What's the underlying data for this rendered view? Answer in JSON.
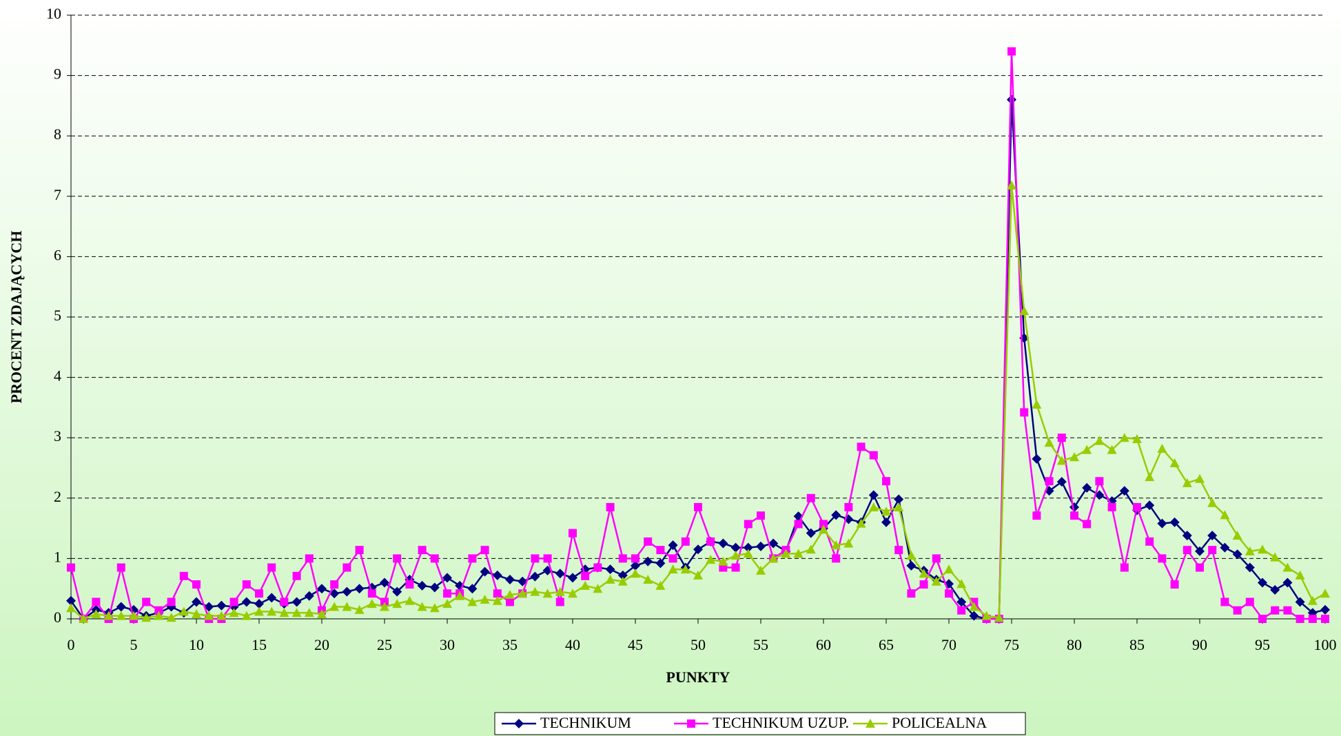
{
  "chart_data": {
    "type": "line",
    "xlabel": "PUNKTY",
    "ylabel": "PROCENT ZDAJĄCYCH",
    "x": [
      0,
      1,
      2,
      3,
      4,
      5,
      6,
      7,
      8,
      9,
      10,
      11,
      12,
      13,
      14,
      15,
      16,
      17,
      18,
      19,
      20,
      21,
      22,
      23,
      24,
      25,
      26,
      27,
      28,
      29,
      30,
      31,
      32,
      33,
      34,
      35,
      36,
      37,
      38,
      39,
      40,
      41,
      42,
      43,
      44,
      45,
      46,
      47,
      48,
      49,
      50,
      51,
      52,
      53,
      54,
      55,
      56,
      57,
      58,
      59,
      60,
      61,
      62,
      63,
      64,
      65,
      66,
      67,
      68,
      69,
      70,
      71,
      72,
      73,
      74,
      75,
      76,
      77,
      78,
      79,
      80,
      81,
      82,
      83,
      84,
      85,
      86,
      87,
      88,
      89,
      90,
      91,
      92,
      93,
      94,
      95,
      96,
      97,
      98,
      99,
      100
    ],
    "series": [
      {
        "name": "TECHNIKUM",
        "color": "#000080",
        "marker": "diamond",
        "values": [
          0.3,
          0.0,
          0.15,
          0.1,
          0.2,
          0.15,
          0.05,
          0.1,
          0.2,
          0.1,
          0.28,
          0.2,
          0.22,
          0.2,
          0.28,
          0.25,
          0.35,
          0.25,
          0.28,
          0.38,
          0.5,
          0.42,
          0.45,
          0.5,
          0.52,
          0.6,
          0.45,
          0.65,
          0.55,
          0.52,
          0.68,
          0.55,
          0.5,
          0.78,
          0.72,
          0.65,
          0.62,
          0.7,
          0.8,
          0.75,
          0.68,
          0.82,
          0.85,
          0.82,
          0.72,
          0.88,
          0.95,
          0.92,
          1.22,
          0.85,
          1.15,
          1.28,
          1.25,
          1.18,
          1.18,
          1.2,
          1.25,
          1.12,
          1.7,
          1.42,
          1.5,
          1.72,
          1.65,
          1.6,
          2.05,
          1.6,
          1.98,
          0.88,
          0.8,
          0.65,
          0.58,
          0.28,
          0.05,
          0.0,
          0.0,
          8.6,
          4.65,
          2.65,
          2.12,
          2.27,
          1.85,
          2.17,
          2.05,
          1.95,
          2.12,
          1.8,
          1.88,
          1.58,
          1.6,
          1.38,
          1.12,
          1.38,
          1.18,
          1.07,
          0.85,
          0.6,
          0.48,
          0.6,
          0.28,
          0.1,
          0.15
        ]
      },
      {
        "name": "TECHNIKUM UZUP.",
        "color": "#ff00ff",
        "marker": "square",
        "values": [
          0.85,
          0.0,
          0.28,
          0.0,
          0.85,
          0.0,
          0.28,
          0.14,
          0.28,
          0.71,
          0.57,
          0.0,
          0.0,
          0.28,
          0.57,
          0.42,
          0.85,
          0.28,
          0.71,
          1.0,
          0.14,
          0.57,
          0.85,
          1.14,
          0.42,
          0.28,
          1.0,
          0.57,
          1.14,
          1.0,
          0.42,
          0.42,
          1.0,
          1.14,
          0.42,
          0.28,
          0.42,
          1.0,
          1.0,
          0.28,
          1.42,
          0.71,
          0.85,
          1.85,
          1.0,
          1.0,
          1.28,
          1.14,
          1.0,
          1.28,
          1.85,
          1.28,
          0.85,
          0.85,
          1.57,
          1.71,
          1.0,
          1.14,
          1.57,
          2.0,
          1.57,
          1.0,
          1.85,
          2.85,
          2.71,
          2.28,
          1.14,
          0.42,
          0.57,
          1.0,
          0.42,
          0.14,
          0.28,
          0.0,
          0.0,
          9.4,
          3.42,
          1.71,
          2.28,
          3.0,
          1.71,
          1.57,
          2.28,
          1.85,
          0.85,
          1.85,
          1.28,
          1.0,
          0.57,
          1.14,
          0.85,
          1.14,
          0.28,
          0.14,
          0.28,
          0.0,
          0.14,
          0.14,
          0.0,
          0.0,
          0.0
        ]
      },
      {
        "name": "POLICEALNA",
        "color": "#99cc00",
        "marker": "triangle",
        "values": [
          0.18,
          0.0,
          0.08,
          0.05,
          0.05,
          0.05,
          0.02,
          0.05,
          0.02,
          0.12,
          0.08,
          0.05,
          0.05,
          0.1,
          0.05,
          0.12,
          0.12,
          0.1,
          0.1,
          0.1,
          0.08,
          0.2,
          0.2,
          0.15,
          0.25,
          0.2,
          0.25,
          0.3,
          0.2,
          0.18,
          0.25,
          0.38,
          0.28,
          0.32,
          0.3,
          0.4,
          0.42,
          0.45,
          0.42,
          0.45,
          0.42,
          0.55,
          0.5,
          0.65,
          0.62,
          0.75,
          0.65,
          0.55,
          0.82,
          0.82,
          0.72,
          0.98,
          0.95,
          1.05,
          1.08,
          0.8,
          1.0,
          1.08,
          1.08,
          1.15,
          1.48,
          1.22,
          1.25,
          1.58,
          1.85,
          1.78,
          1.85,
          1.05,
          0.75,
          0.62,
          0.82,
          0.58,
          0.2,
          0.05,
          0.02,
          7.18,
          5.1,
          3.55,
          2.92,
          2.62,
          2.68,
          2.8,
          2.95,
          2.8,
          3.0,
          2.98,
          2.35,
          2.82,
          2.58,
          2.25,
          2.32,
          1.92,
          1.72,
          1.38,
          1.12,
          1.15,
          1.02,
          0.85,
          0.72,
          0.3,
          0.42
        ]
      }
    ],
    "xlim": [
      0,
      100
    ],
    "xticks": [
      0,
      5,
      10,
      15,
      20,
      25,
      30,
      35,
      40,
      45,
      50,
      55,
      60,
      65,
      70,
      75,
      80,
      85,
      90,
      95,
      100
    ],
    "ylim": [
      0,
      10
    ],
    "yticks": [
      0,
      1,
      2,
      3,
      4,
      5,
      6,
      7,
      8,
      9,
      10
    ],
    "grid": true,
    "legend": "bottom"
  }
}
